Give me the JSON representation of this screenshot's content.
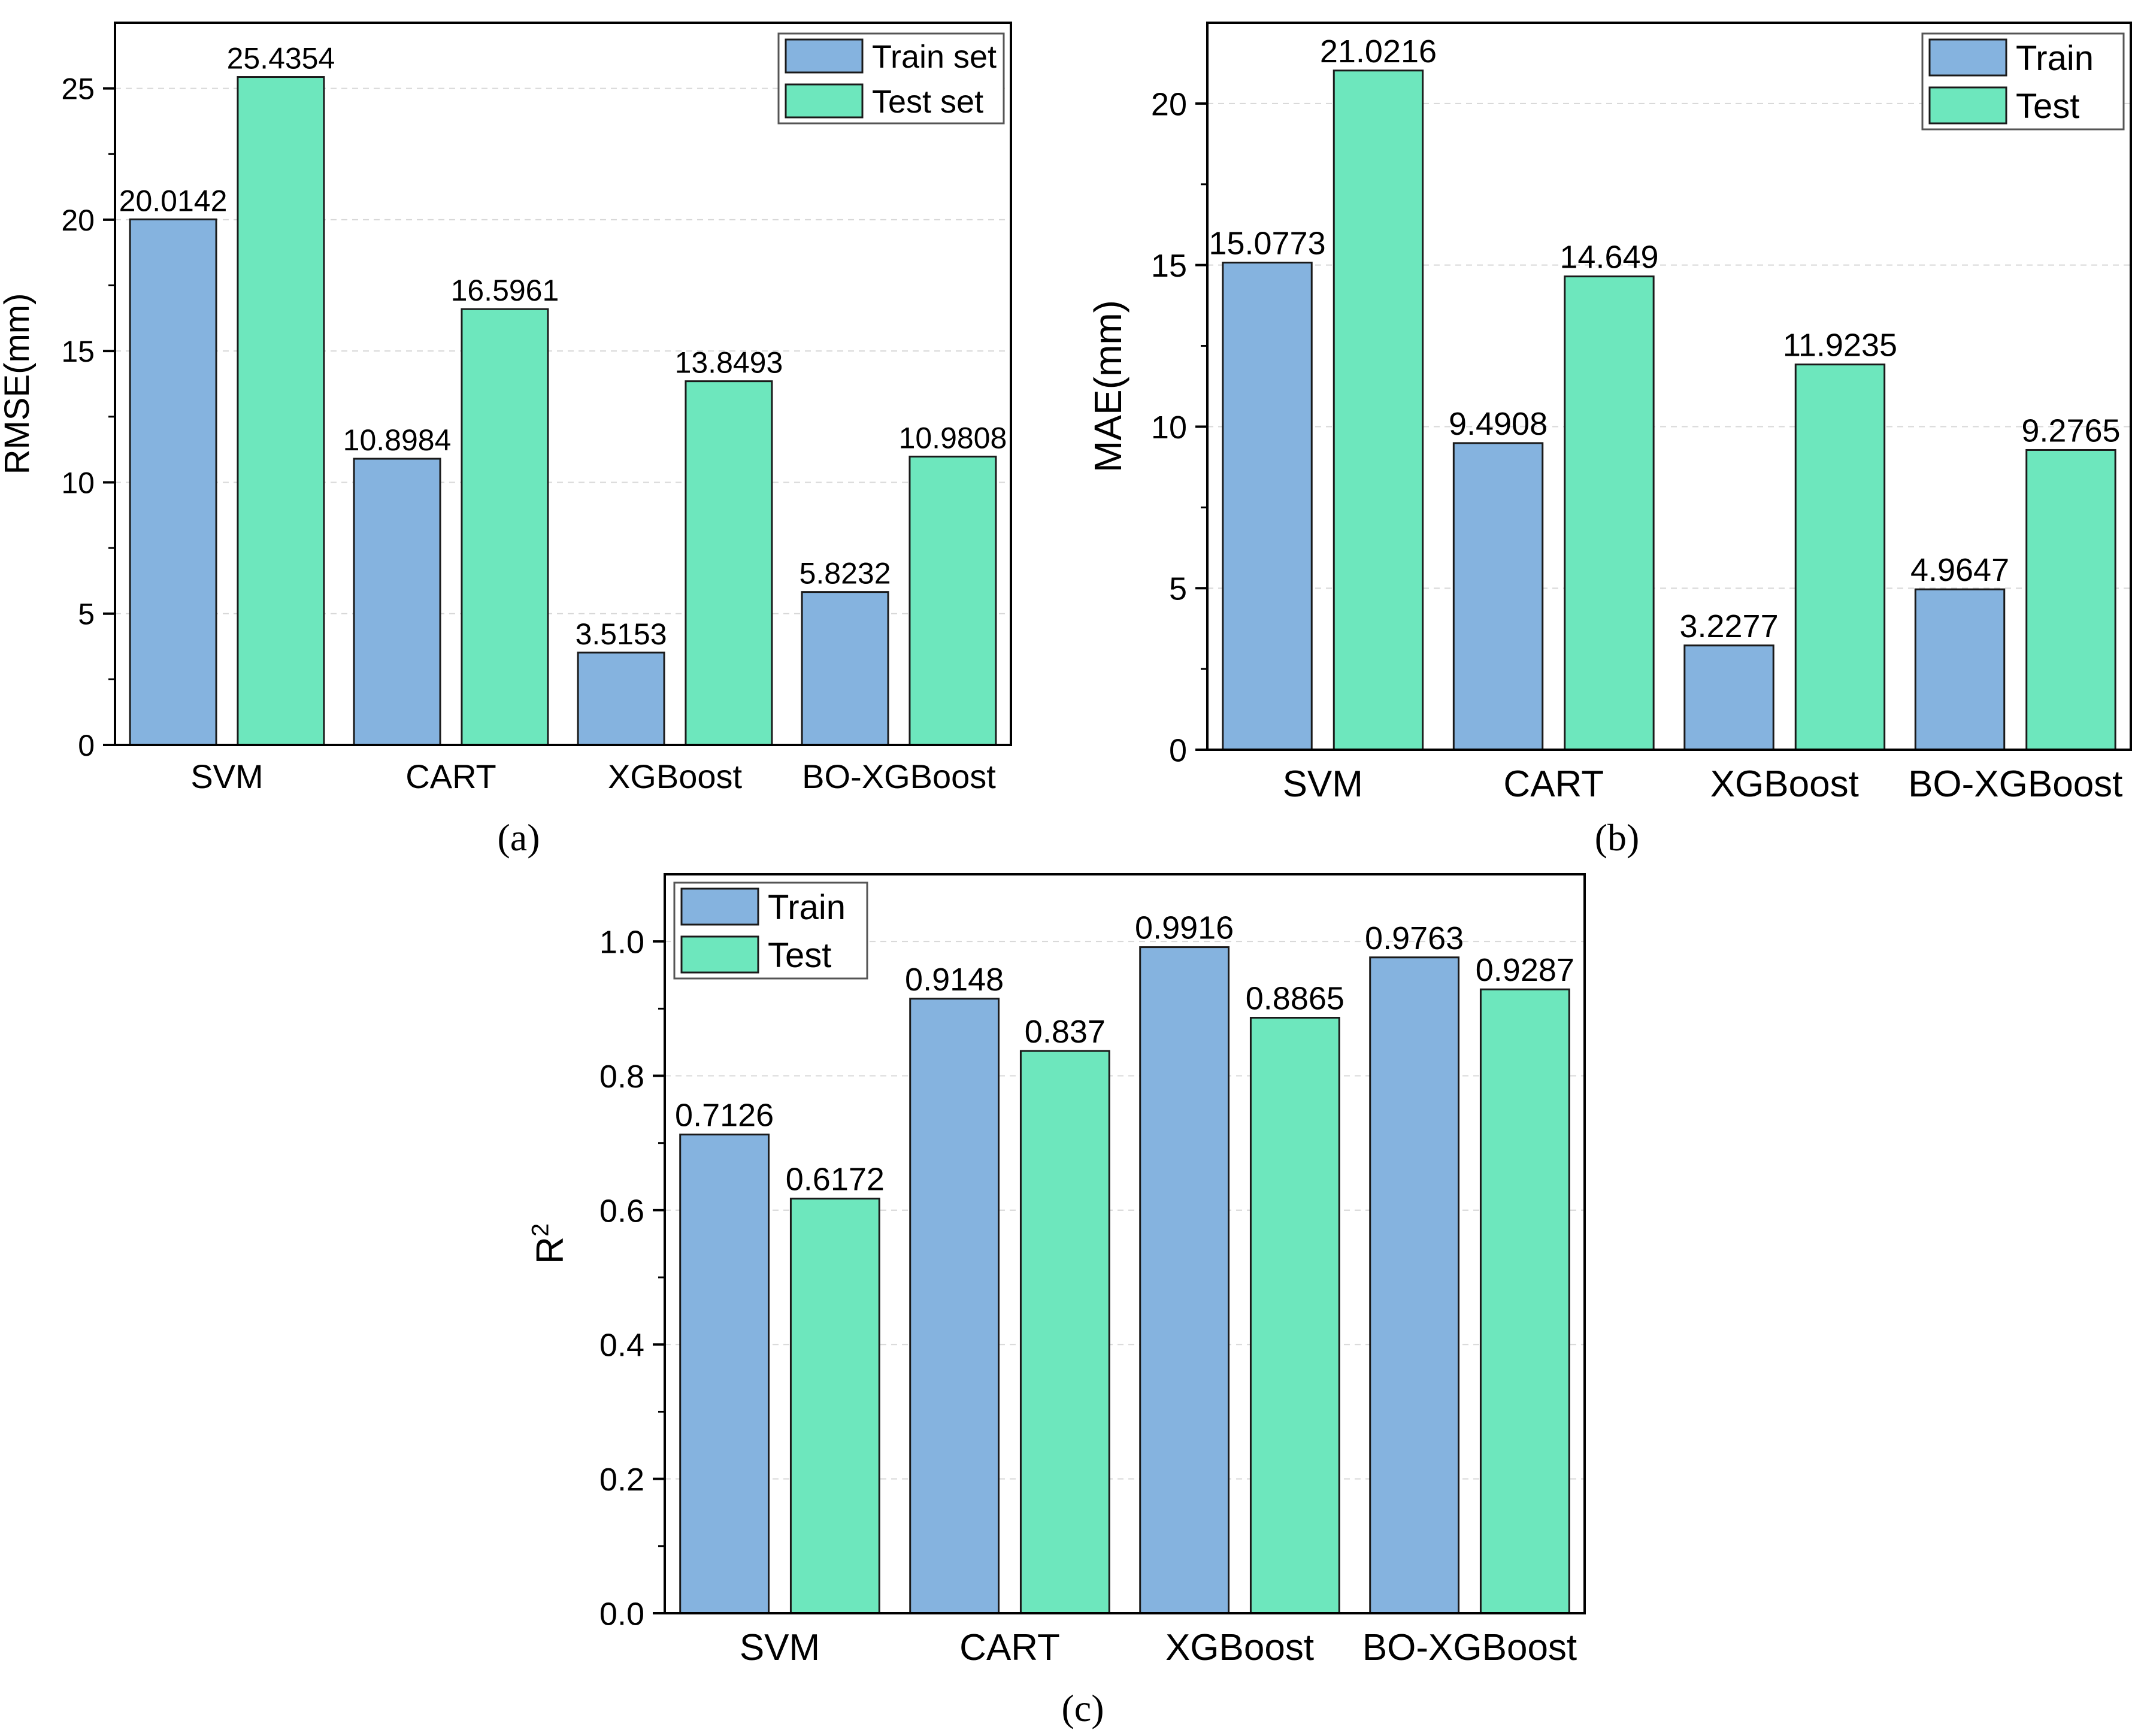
{
  "colors": {
    "train": "#85b3df",
    "test": "#6de7bd",
    "axis": "#000000",
    "grid": "#d8d8d8"
  },
  "chart_data": [
    {
      "type": "bar",
      "panel": "a",
      "panel_label": "(a)",
      "categories": [
        "SVM",
        "CART",
        "XGBoost",
        "BO-XGBoost"
      ],
      "series": [
        {
          "name": "Train set",
          "values": [
            20.0142,
            10.8984,
            3.5153,
            5.8232
          ],
          "labels": [
            "20.0142",
            "10.8984",
            "3.5153",
            "5.8232"
          ]
        },
        {
          "name": "Test set",
          "values": [
            25.4354,
            16.5961,
            13.8493,
            10.9808
          ],
          "labels": [
            "25.4354",
            "16.5961",
            "13.8493",
            "10.9808"
          ]
        }
      ],
      "title": "",
      "xlabel": "",
      "ylabel": "RMSE(mm)",
      "ylim": [
        0,
        27.5
      ],
      "yticks": [
        0,
        5,
        10,
        15,
        20,
        25
      ],
      "ytick_labels": [
        "0",
        "5",
        "10",
        "15",
        "20",
        "25"
      ],
      "grid": true,
      "legend": "top-right"
    },
    {
      "type": "bar",
      "panel": "b",
      "panel_label": "(b)",
      "categories": [
        "SVM",
        "CART",
        "XGBoost",
        "BO-XGBoost"
      ],
      "series": [
        {
          "name": "Train",
          "values": [
            15.0773,
            9.4908,
            3.2277,
            4.9647
          ],
          "labels": [
            "15.0773",
            "9.4908",
            "3.2277",
            "4.9647"
          ]
        },
        {
          "name": "Test",
          "values": [
            21.0216,
            14.649,
            11.9235,
            9.2765
          ],
          "labels": [
            "21.0216",
            "14.649",
            "11.9235",
            "9.2765"
          ]
        }
      ],
      "title": "",
      "xlabel": "",
      "ylabel": "MAE(mm)",
      "ylim": [
        0,
        22.5
      ],
      "yticks": [
        0,
        5,
        10,
        15,
        20
      ],
      "ytick_labels": [
        "0",
        "5",
        "10",
        "15",
        "20"
      ],
      "grid": true,
      "legend": "top-right"
    },
    {
      "type": "bar",
      "panel": "c",
      "panel_label": "(c)",
      "categories": [
        "SVM",
        "CART",
        "XGBoost",
        "BO-XGBoost"
      ],
      "series": [
        {
          "name": "Train",
          "values": [
            0.7126,
            0.9148,
            0.9916,
            0.9763
          ],
          "labels": [
            "0.7126",
            "0.9148",
            "0.9916",
            "0.9763"
          ]
        },
        {
          "name": "Test",
          "values": [
            0.6172,
            0.837,
            0.8865,
            0.9287
          ],
          "labels": [
            "0.6172",
            "0.837",
            "0.8865",
            "0.9287"
          ]
        }
      ],
      "title": "",
      "xlabel": "",
      "ylabel": "R",
      "ylabel_sup": "2",
      "ylim": [
        0,
        1.1
      ],
      "yticks": [
        0,
        0.2,
        0.4,
        0.6,
        0.8,
        1.0
      ],
      "ytick_labels": [
        "0.0",
        "0.2",
        "0.4",
        "0.6",
        "0.8",
        "1.0"
      ],
      "grid": true,
      "legend": "top-left"
    }
  ]
}
